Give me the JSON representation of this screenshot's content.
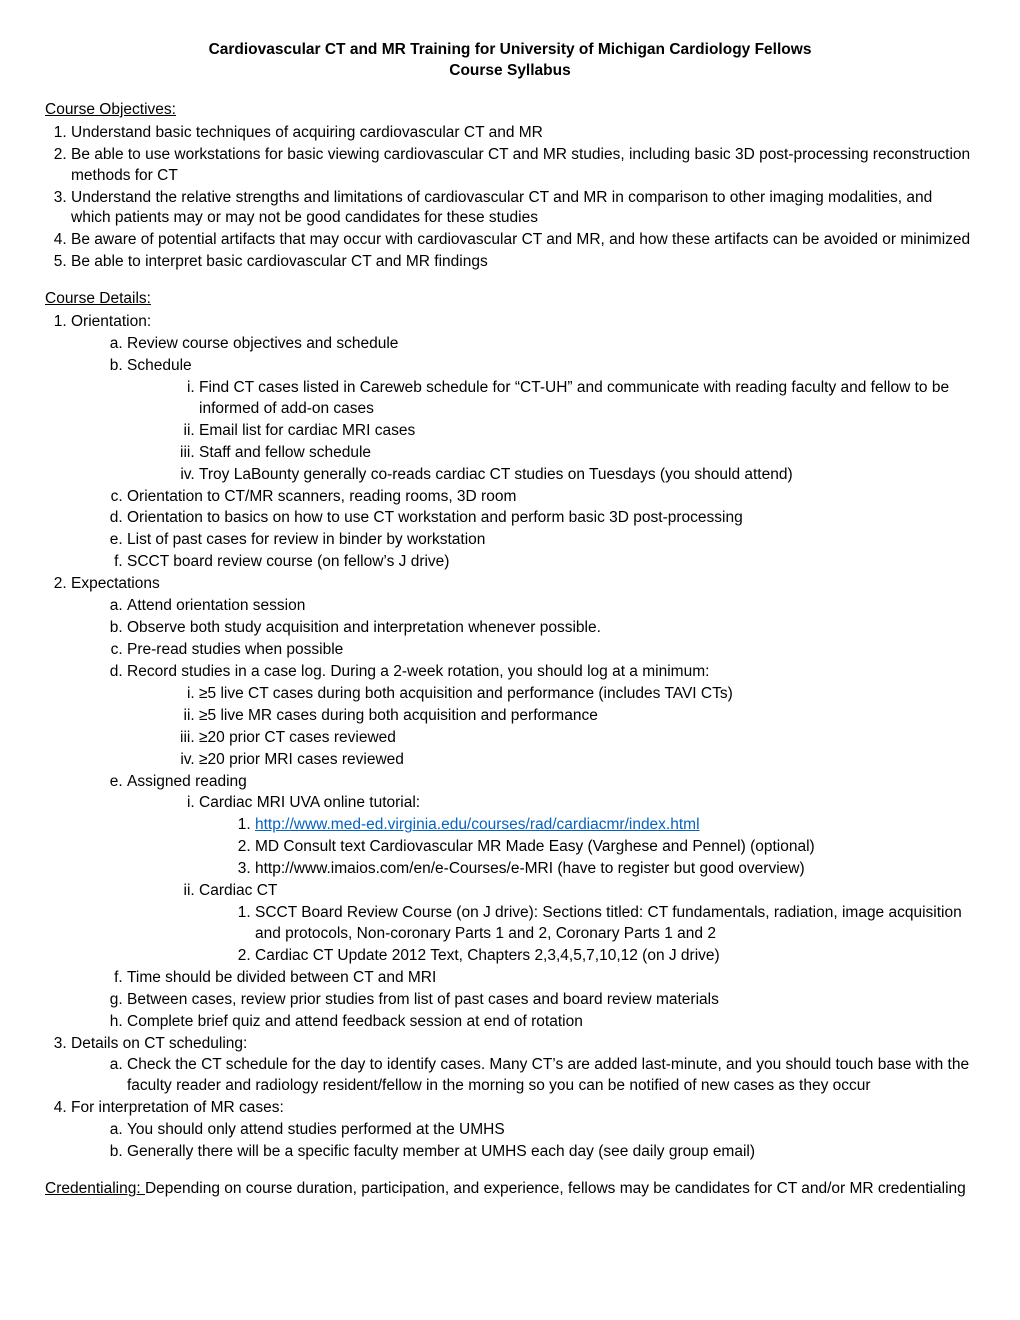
{
  "title": {
    "line1": "Cardiovascular CT and MR Training for University of Michigan Cardiology Fellows",
    "line2": "Course Syllabus"
  },
  "objectives": {
    "heading": "Course Objectives:",
    "items": [
      "Understand basic techniques of acquiring cardiovascular CT and MR",
      "Be able to use workstations for basic viewing cardiovascular CT and MR studies, including basic 3D post-processing reconstruction methods for CT",
      "Understand the relative strengths and limitations of cardiovascular CT and MR in comparison to other imaging modalities, and which patients may or may not be good candidates for these studies",
      "Be aware of potential artifacts that may occur with cardiovascular CT and MR, and how these artifacts can be avoided or minimized",
      "Be able to interpret basic cardiovascular CT and MR findings"
    ]
  },
  "details": {
    "heading": "Course Details:",
    "n1": {
      "label": "Orientation:",
      "a": "Review course objectives and schedule",
      "b": {
        "label": "Schedule",
        "i": "Find CT cases listed in Careweb schedule for “CT-UH” and communicate with reading faculty and fellow to be informed of add-on cases",
        "ii": "Email list for cardiac MRI cases",
        "iii": "Staff and fellow schedule",
        "iv": "Troy LaBounty generally co-reads cardiac CT studies on Tuesdays (you should attend)"
      },
      "c": "Orientation to CT/MR scanners, reading rooms, 3D room",
      "d": "Orientation to basics on how to use CT workstation and perform basic 3D post-processing",
      "e": "List of past cases for review in binder by workstation",
      "f": "SCCT board review course (on fellow’s J drive)"
    },
    "n2": {
      "label": "Expectations",
      "a": "Attend orientation session",
      "b": "Observe both study acquisition and interpretation whenever possible.",
      "c": "Pre-read studies when possible",
      "d": {
        "label": "Record studies in a case log. During a 2-week rotation, you should log at a minimum:",
        "i": "5 live CT cases during both acquisition and performance (includes TAVI CTs)",
        "ii": "5 live MR cases during both acquisition and performance",
        "iii": "20 prior CT cases reviewed",
        "iv": "20 prior MRI cases reviewed"
      },
      "e": {
        "label": "Assigned reading",
        "i": {
          "label": "Cardiac MRI UVA online tutorial:",
          "n1_url": "http://www.med-ed.virginia.edu/courses/rad/cardiacmr/index.html",
          "n2": "MD Consult text Cardiovascular MR Made Easy (Varghese and Pennel) (optional)",
          "n3": "http://www.imaios.com/en/e-Courses/e-MRI (have to register but good overview)"
        },
        "ii": {
          "label": "Cardiac CT",
          "n1": "SCCT Board Review Course (on J drive): Sections titled: CT fundamentals, radiation, image acquisition and protocols, Non-coronary Parts 1 and 2, Coronary Parts 1 and 2",
          "n2": "Cardiac CT Update 2012 Text, Chapters 2,3,4,5,7,10,12 (on J drive)"
        }
      },
      "f": "Time should be divided between CT and MRI",
      "g": "Between cases, review prior studies from list of past cases and board review materials",
      "h": "Complete brief quiz and attend feedback session at end of rotation"
    },
    "n3": {
      "label": "Details on CT scheduling:",
      "a": "Check the CT schedule for the day to identify cases. Many CT’s are added last-minute, and you should touch base with the faculty reader and radiology resident/fellow in the morning so you can be notified of new cases as they occur"
    },
    "n4": {
      "label": "For interpretation of MR cases:",
      "a": "You should only attend studies performed at the UMHS",
      "b": "Generally there will be a specific faculty member at UMHS each day (see daily group email)"
    }
  },
  "credentialing": {
    "label": "Credentialing: ",
    "text": "Depending on course duration, participation, and experience, fellows may be candidates for CT and/or MR credentialing"
  }
}
